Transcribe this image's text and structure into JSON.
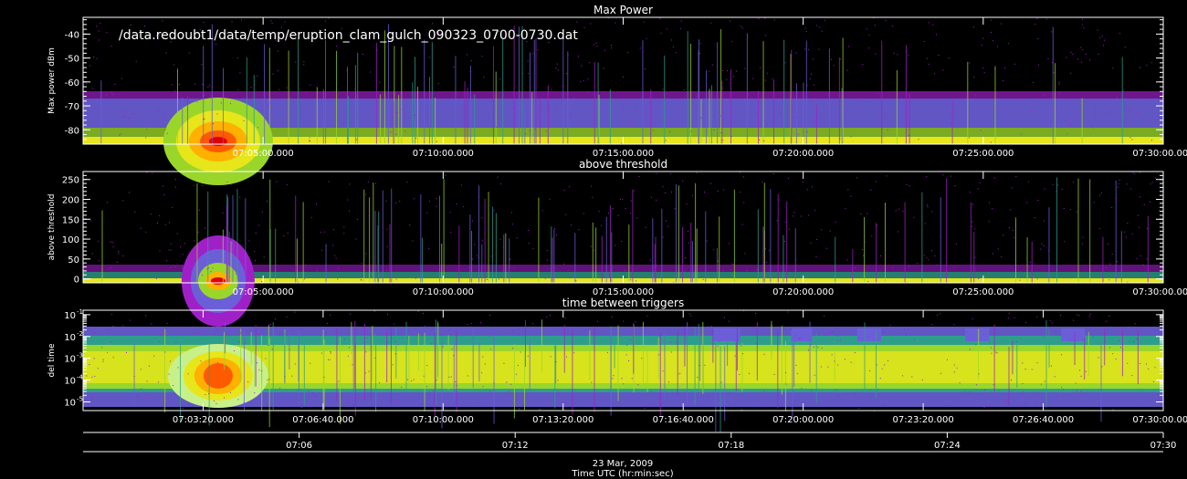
{
  "filename": "/data.redoubt1/data/temp/eruption_clam_gulch_090323_0700-0730.dat",
  "date": "23 Mar, 2009",
  "time_label": "Time UTC (hr:min:sec)",
  "colors": {
    "background": "#000000",
    "axes": "#ffffff",
    "palette": [
      "#a020c8",
      "#6b5fd8",
      "#2e9e8c",
      "#9ad62a",
      "#e6e61a",
      "#ffb000",
      "#ff5a00",
      "#e00000"
    ]
  },
  "chart_data": [
    {
      "type": "heatmap",
      "title": "Max Power",
      "ylabel": "Max power dBm",
      "ylim": [
        -86,
        -33
      ],
      "yticks": [
        -40,
        -50,
        -60,
        -70,
        -80
      ],
      "x_range": [
        "07:00:00",
        "07:30:00"
      ],
      "xticks": [
        "07:05:00.000",
        "07:10:00.000",
        "07:15:00.000",
        "07:20:00.000",
        "07:25:00.000",
        "07:30:00.000"
      ],
      "grid": false
    },
    {
      "type": "heatmap",
      "title": "above threshold",
      "ylabel": "above threshold",
      "ylim": [
        -10,
        270
      ],
      "yticks": [
        0,
        50,
        100,
        150,
        200,
        250
      ],
      "x_range": [
        "07:00:00",
        "07:30:00"
      ],
      "xticks": [
        "07:05:00.000",
        "07:10:00.000",
        "07:15:00.000",
        "07:20:00.000",
        "07:25:00.000",
        "07:30:00.000"
      ],
      "grid": false
    },
    {
      "type": "heatmap",
      "title": "time between triggers",
      "ylabel": "del time",
      "yscale": "log",
      "ylim": [
        4e-06,
        0.16
      ],
      "yticks": [
        "10^-1",
        "10^-2",
        "10^-3",
        "10^-4",
        "10^-5"
      ],
      "x_range": [
        "07:00:00",
        "07:30:00"
      ],
      "xticks": [
        "07:03:20.000",
        "07:06:40.000",
        "07:10:00.000",
        "07:13:20.000",
        "07:16:40.000",
        "07:20:00.000",
        "07:23:20.000",
        "07:26:40.000",
        "07:30:00.000"
      ],
      "grid": false
    }
  ],
  "bottom_axis": {
    "ticks": [
      "07:06",
      "07:12",
      "07:18",
      "07:24",
      "07:30"
    ]
  }
}
